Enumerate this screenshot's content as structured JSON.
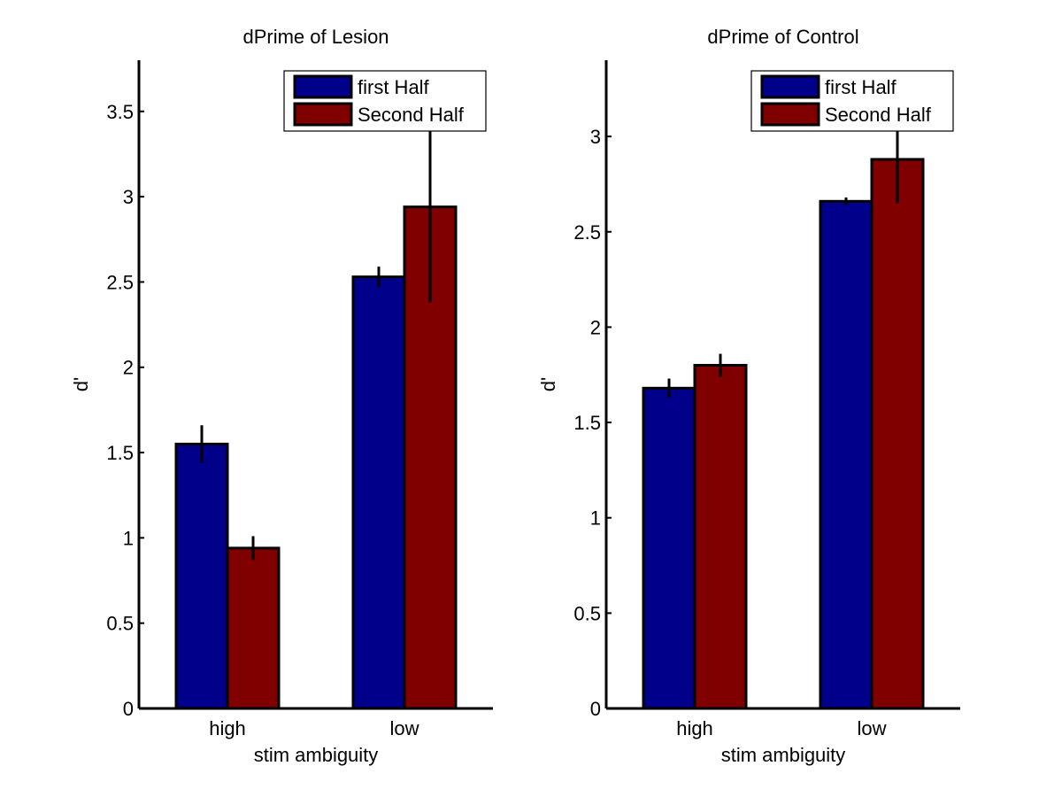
{
  "colors": {
    "first_half": "#00008b",
    "second_half": "#800000",
    "axis": "#000000",
    "background": "#ffffff"
  },
  "chart_data": [
    {
      "type": "bar",
      "title": "dPrime of Lesion",
      "xlabel": "stim ambiguity",
      "ylabel": "d'",
      "categories": [
        "high",
        "low"
      ],
      "ylim": [
        0,
        3.8
      ],
      "yticks": [
        0,
        0.5,
        1,
        1.5,
        2,
        2.5,
        3,
        3.5
      ],
      "ytick_labels": [
        "0",
        "0.5",
        "1",
        "1.5",
        "2",
        "2.5",
        "3",
        "3.5"
      ],
      "grid": false,
      "legend": "top-right",
      "series": [
        {
          "name": "first Half",
          "values": [
            1.55,
            2.53
          ],
          "errors": [
            0.11,
            0.06
          ],
          "color": "#00008b"
        },
        {
          "name": "Second Half",
          "values": [
            0.94,
            2.94
          ],
          "errors": [
            0.07,
            0.56
          ],
          "color": "#800000"
        }
      ]
    },
    {
      "type": "bar",
      "title": "dPrime of Control",
      "xlabel": "stim ambiguity",
      "ylabel": "d'",
      "categories": [
        "high",
        "low"
      ],
      "ylim": [
        0,
        3.4
      ],
      "yticks": [
        0,
        0.5,
        1,
        1.5,
        2,
        2.5,
        3
      ],
      "ytick_labels": [
        "0",
        "0.5",
        "1",
        "1.5",
        "2",
        "2.5",
        "3"
      ],
      "grid": false,
      "legend": "top-right",
      "series": [
        {
          "name": "first Half",
          "values": [
            1.68,
            2.66
          ],
          "errors": [
            0.05,
            0.02
          ],
          "color": "#00008b"
        },
        {
          "name": "Second Half",
          "values": [
            1.8,
            2.88
          ],
          "errors": [
            0.06,
            0.23
          ],
          "color": "#800000"
        }
      ]
    }
  ]
}
